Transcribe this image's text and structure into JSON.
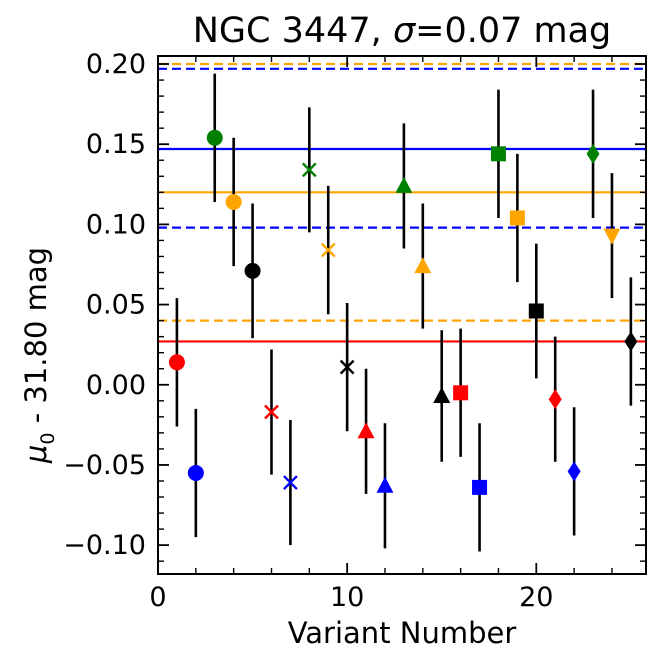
{
  "chart_data": {
    "type": "scatter",
    "title_prefix": "NGC 3447, ",
    "title_sigma": "σ",
    "title_suffix": "=0.07 mag",
    "xlabel": "Variant Number",
    "ylabel_mu": "μ",
    "ylabel_sub": "0",
    "ylabel_rest": " - 31.80 mag",
    "xlim": [
      0,
      25.8
    ],
    "ylim": [
      -0.118,
      0.205
    ],
    "xticks": [
      0,
      10,
      20
    ],
    "xtick_labels": [
      "0",
      "10",
      "20"
    ],
    "yticks": [
      0.2,
      0.15,
      0.1,
      0.05,
      0.0,
      -0.05,
      -0.1
    ],
    "ytick_labels": [
      "0.20",
      "0.15",
      "0.10",
      "0.05",
      "0.00",
      "−0.05",
      "−0.10"
    ],
    "reference_lines": [
      {
        "name": "blue-mean",
        "y": 0.147,
        "color": "#0000ff",
        "style": "solid"
      },
      {
        "name": "blue-upper",
        "y": 0.197,
        "color": "#0000ff",
        "style": "dashed"
      },
      {
        "name": "blue-lower",
        "y": 0.098,
        "color": "#0000ff",
        "style": "dashed"
      },
      {
        "name": "orange-mean",
        "y": 0.12,
        "color": "#ffa500",
        "style": "solid"
      },
      {
        "name": "orange-upper",
        "y": 0.2,
        "color": "#ffa500",
        "style": "dashed"
      },
      {
        "name": "orange-lower",
        "y": 0.04,
        "color": "#ffa500",
        "style": "dashed"
      },
      {
        "name": "red-mean",
        "y": 0.027,
        "color": "#ff0000",
        "style": "solid"
      }
    ],
    "points": [
      {
        "variant": 1,
        "value": 0.014,
        "error": 0.04,
        "marker": "circle",
        "color": "#ff0000"
      },
      {
        "variant": 2,
        "value": -0.055,
        "error": 0.04,
        "marker": "circle",
        "color": "#0000ff"
      },
      {
        "variant": 3,
        "value": 0.154,
        "error": 0.04,
        "marker": "circle",
        "color": "#008000"
      },
      {
        "variant": 4,
        "value": 0.114,
        "error": 0.04,
        "marker": "circle",
        "color": "#ffa500"
      },
      {
        "variant": 5,
        "value": 0.071,
        "error": 0.042,
        "marker": "circle",
        "color": "#000000"
      },
      {
        "variant": 6,
        "value": -0.017,
        "error": 0.039,
        "marker": "x",
        "color": "#ff0000"
      },
      {
        "variant": 7,
        "value": -0.061,
        "error": 0.039,
        "marker": "x",
        "color": "#0000ff"
      },
      {
        "variant": 8,
        "value": 0.134,
        "error": 0.039,
        "marker": "x",
        "color": "#008000"
      },
      {
        "variant": 9,
        "value": 0.084,
        "error": 0.04,
        "marker": "x",
        "color": "#ffa500"
      },
      {
        "variant": 10,
        "value": 0.011,
        "error": 0.04,
        "marker": "x",
        "color": "#000000"
      },
      {
        "variant": 11,
        "value": -0.029,
        "error": 0.039,
        "marker": "triangle-up",
        "color": "#ff0000"
      },
      {
        "variant": 12,
        "value": -0.063,
        "error": 0.039,
        "marker": "triangle-up",
        "color": "#0000ff"
      },
      {
        "variant": 13,
        "value": 0.124,
        "error": 0.039,
        "marker": "triangle-up",
        "color": "#008000"
      },
      {
        "variant": 14,
        "value": 0.074,
        "error": 0.039,
        "marker": "triangle-up",
        "color": "#ffa500"
      },
      {
        "variant": 15,
        "value": -0.007,
        "error": 0.041,
        "marker": "triangle-up",
        "color": "#000000"
      },
      {
        "variant": 16,
        "value": -0.005,
        "error": 0.04,
        "marker": "square",
        "color": "#ff0000"
      },
      {
        "variant": 17,
        "value": -0.064,
        "error": 0.04,
        "marker": "square",
        "color": "#0000ff"
      },
      {
        "variant": 18,
        "value": 0.144,
        "error": 0.04,
        "marker": "square",
        "color": "#008000"
      },
      {
        "variant": 19,
        "value": 0.104,
        "error": 0.04,
        "marker": "square",
        "color": "#ffa500"
      },
      {
        "variant": 20,
        "value": 0.046,
        "error": 0.042,
        "marker": "square",
        "color": "#000000"
      },
      {
        "variant": 21,
        "value": -0.009,
        "error": 0.039,
        "marker": "diamond",
        "color": "#ff0000"
      },
      {
        "variant": 22,
        "value": -0.054,
        "error": 0.04,
        "marker": "diamond",
        "color": "#0000ff"
      },
      {
        "variant": 23,
        "value": 0.144,
        "error": 0.04,
        "marker": "diamond",
        "color": "#008000"
      },
      {
        "variant": 24,
        "value": 0.093,
        "error": 0.039,
        "marker": "triangle-down",
        "color": "#ffa500"
      },
      {
        "variant": 25,
        "value": 0.027,
        "error": 0.04,
        "marker": "diamond",
        "color": "#000000"
      }
    ]
  }
}
